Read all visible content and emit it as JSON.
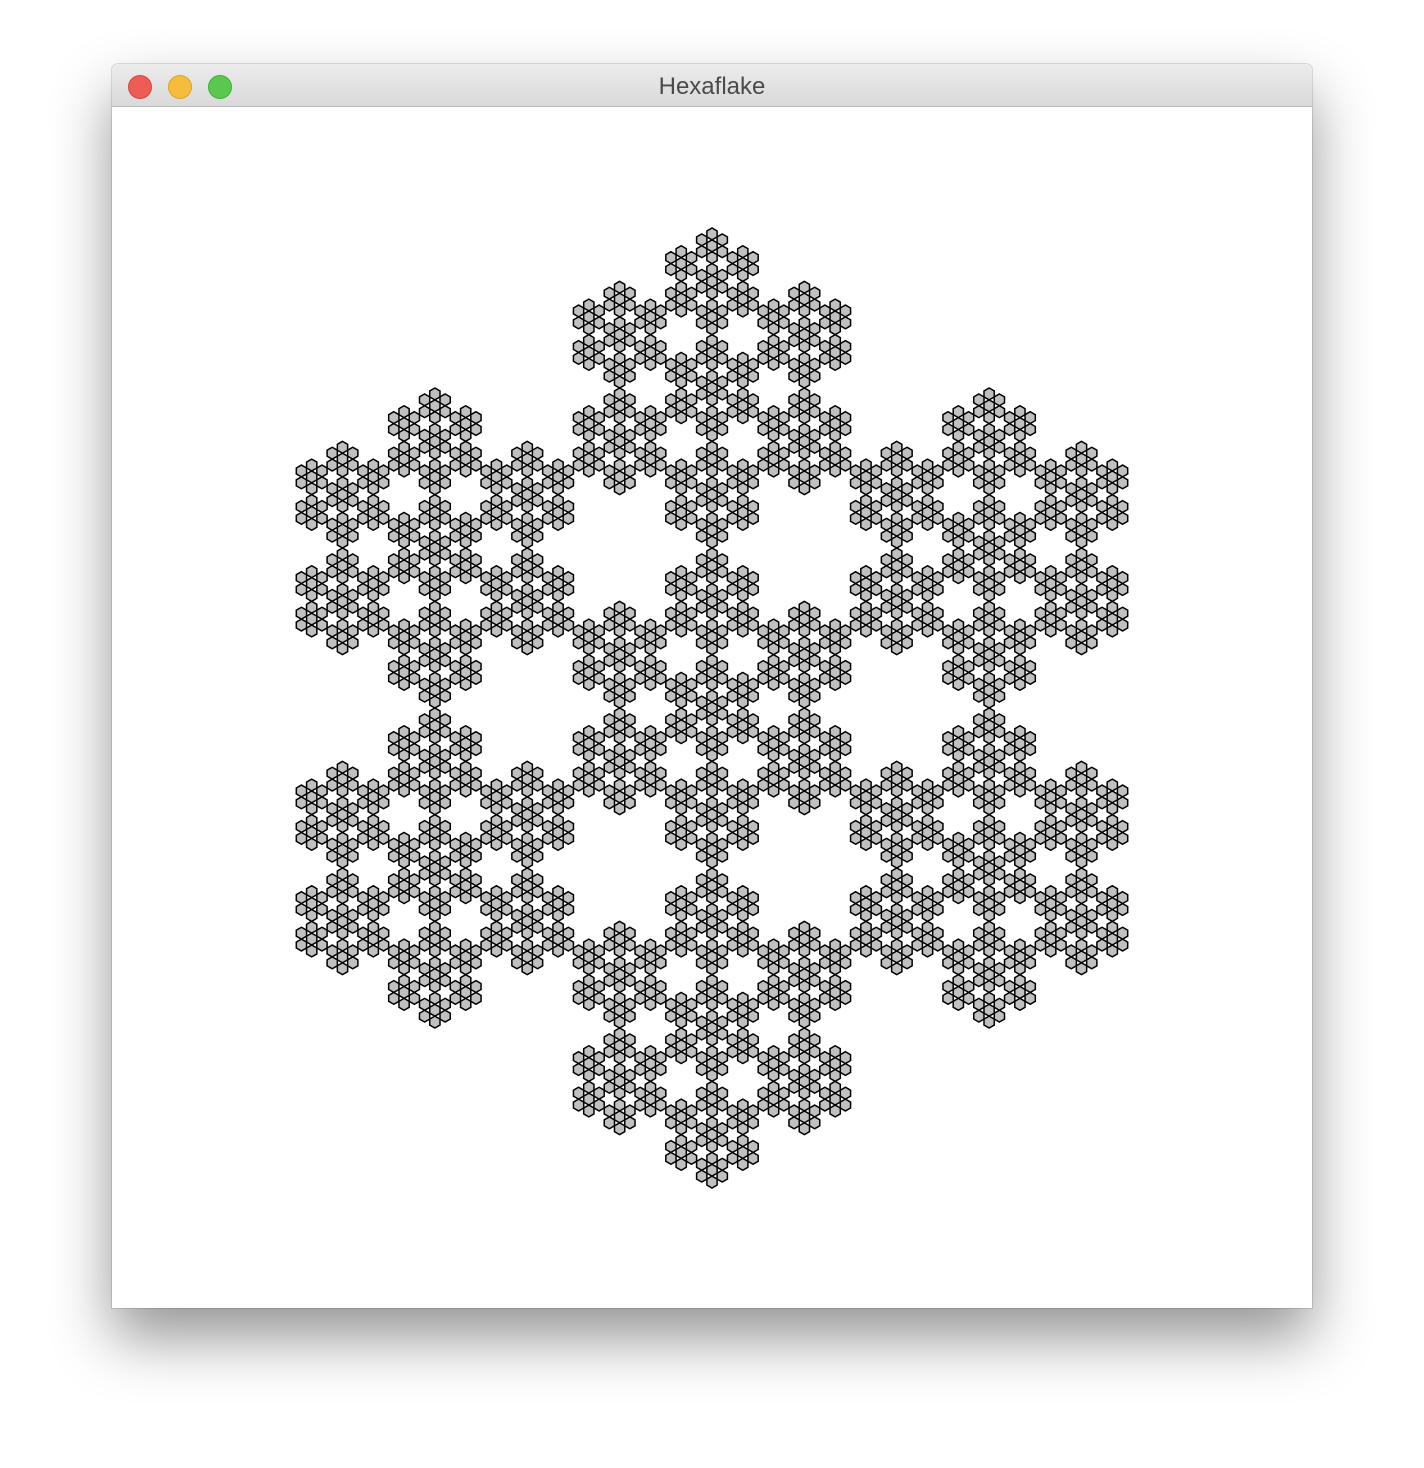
{
  "window": {
    "title": "Hexaflake",
    "controls": {
      "close_icon": "close-icon",
      "minimize_icon": "minimize-icon",
      "zoom_icon": "zoom-icon"
    }
  },
  "canvas": {
    "figure": "hexaflake-fractal",
    "fill_color": "#c0c0c0",
    "stroke_color": "#000000",
    "background_color": "#ffffff",
    "levels": 4
  }
}
